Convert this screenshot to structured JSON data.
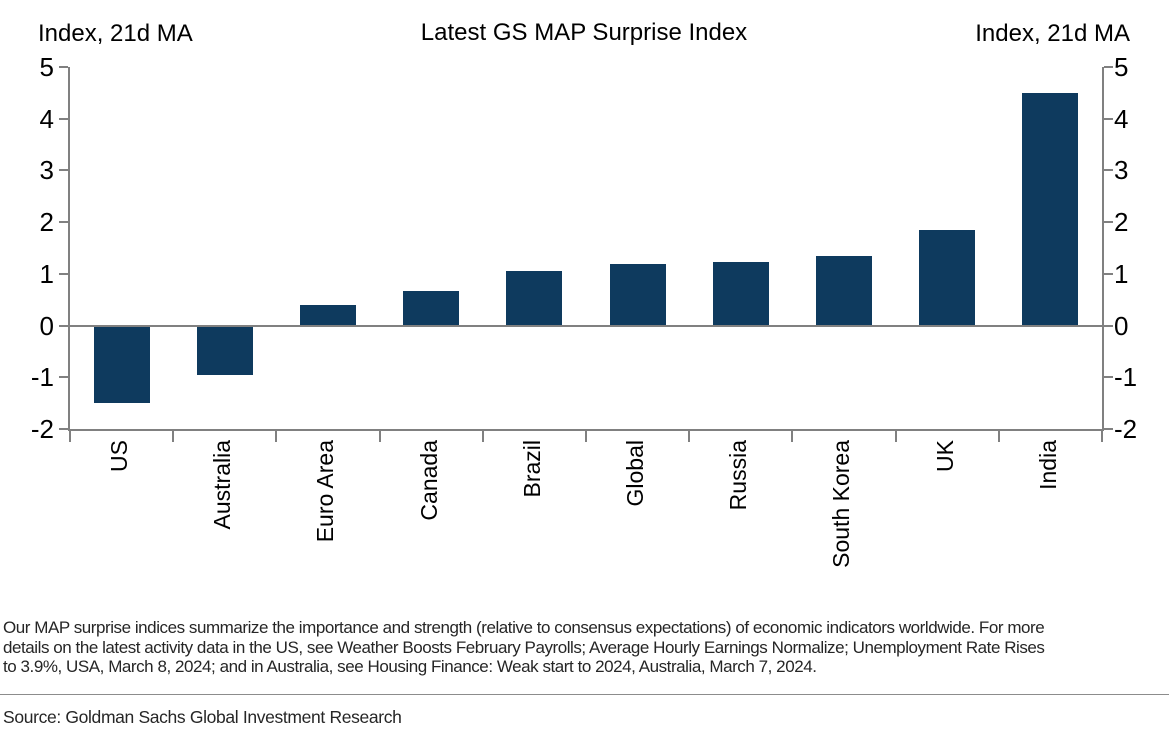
{
  "chart": {
    "left_axis_title": "Index, 21d MA",
    "right_axis_title": "Index, 21d MA"
  },
  "chart_data": {
    "type": "bar",
    "title": "Latest GS MAP Surprise Index",
    "categories": [
      "US",
      "Australia",
      "Euro Area",
      "Canada",
      "Brazil",
      "Global",
      "Russia",
      "South Korea",
      "UK",
      "India"
    ],
    "values": [
      -1.5,
      -0.95,
      0.4,
      0.67,
      1.05,
      1.2,
      1.22,
      1.35,
      1.85,
      4.5
    ],
    "xlabel": "",
    "ylabel_left": "Index, 21d MA",
    "ylabel_right": "Index, 21d MA",
    "ylim": [
      -2,
      5
    ],
    "yticks": [
      5,
      4,
      3,
      2,
      1,
      0,
      -1,
      -2
    ],
    "grid": "off",
    "legend": "none",
    "bar_color": "#0e3a5e",
    "axis_color": "#808080"
  },
  "footnote": {
    "lines": [
      "Our MAP surprise indices summarize the importance and strength (relative to consensus expectations) of economic indicators worldwide. For more",
      "details on the latest activity data in the US, see Weather Boosts February Payrolls; Average Hourly Earnings Normalize; Unemployment Rate Rises",
      "to 3.9%, USA, March 8, 2024; and in Australia, see Housing Finance: Weak start to 2024, Australia, March 7, 2024."
    ]
  },
  "footer": {
    "source": "Source: Goldman Sachs Global Investment Research"
  }
}
